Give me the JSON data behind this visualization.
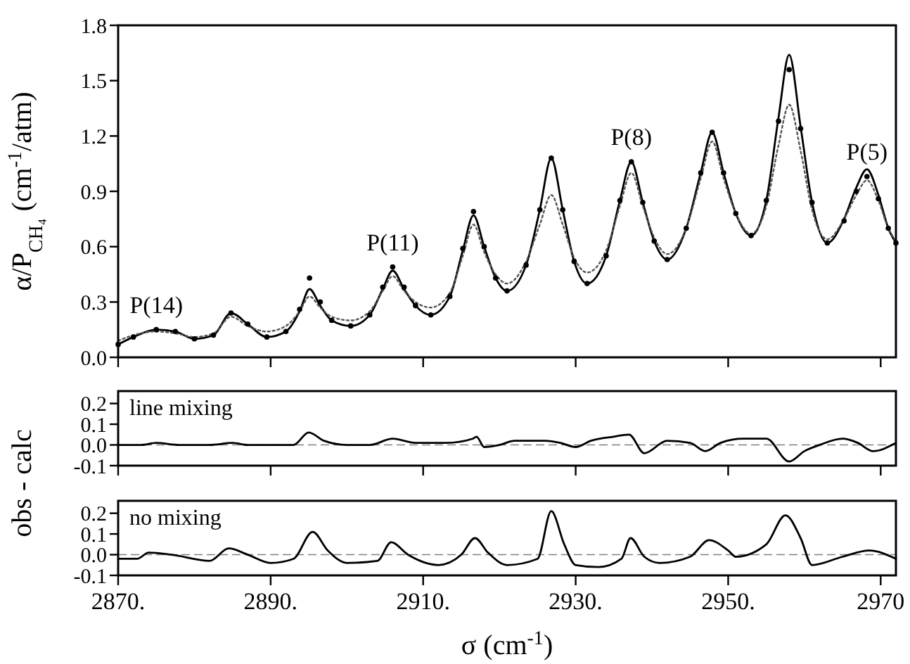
{
  "chart_data": [
    {
      "type": "line",
      "ylabel": "α/P$_{CH₄}$ (cm$^{-1}$/atm)",
      "xlim": [
        2870,
        2972
      ],
      "xticks": [
        2870,
        2890,
        2910,
        2930,
        2950,
        2970
      ],
      "ylim": [
        0,
        1.8
      ],
      "yticks": [
        {
          "value": 0,
          "label": "0.0"
        },
        {
          "value": 0.3,
          "label": "0.3"
        },
        {
          "value": 0.6,
          "label": "0.6"
        },
        {
          "value": 0.9,
          "label": "0.9"
        },
        {
          "value": 1.2,
          "label": "1.2"
        },
        {
          "value": 1.5,
          "label": "1.5"
        },
        {
          "value": 1.8,
          "label": "1.8"
        }
      ],
      "tick_labels": "y",
      "grid": false,
      "annotations": [
        {
          "text": "P(14)",
          "x": 2875,
          "y": 0.15
        },
        {
          "text": "P(11)",
          "x": 2906,
          "y": 0.49
        },
        {
          "text": "P(8)",
          "x": 2937.3,
          "y": 1.06
        },
        {
          "text": "P(5)",
          "x": 2968.2,
          "y": 0.98
        }
      ],
      "series": [
        {
          "type": "scatter",
          "marker": "circle",
          "color": "#000000",
          "x": [
            2870,
            2872,
            2875,
            2877.5,
            2880,
            2882.5,
            2884.8,
            2887,
            2889.5,
            2892,
            2893.8,
            2895.1,
            2896.5,
            2898,
            2900.5,
            2903,
            2904.7,
            2906,
            2907.5,
            2909,
            2911,
            2913.5,
            2915.2,
            2916.6,
            2918,
            2919.5,
            2921,
            2923.5,
            2925.3,
            2926.8,
            2928.3,
            2929.8,
            2931.5,
            2934,
            2935.8,
            2937.3,
            2938.8,
            2940.3,
            2942,
            2944.5,
            2946.4,
            2947.9,
            2949.4,
            2951,
            2953,
            2955,
            2956.6,
            2958,
            2959.5,
            2961,
            2963,
            2965.2,
            2966.8,
            2968.2,
            2969.7,
            2971,
            2972
          ],
          "values": [
            0.07,
            0.11,
            0.15,
            0.14,
            0.1,
            0.12,
            0.24,
            0.18,
            0.11,
            0.14,
            0.26,
            0.43,
            0.3,
            0.2,
            0.17,
            0.23,
            0.38,
            0.49,
            0.38,
            0.28,
            0.23,
            0.33,
            0.59,
            0.79,
            0.6,
            0.43,
            0.36,
            0.5,
            0.8,
            1.08,
            0.8,
            0.52,
            0.4,
            0.55,
            0.85,
            1.06,
            0.84,
            0.63,
            0.53,
            0.7,
            1.0,
            1.22,
            1.0,
            0.78,
            0.66,
            0.85,
            1.28,
            1.56,
            1.24,
            0.84,
            0.62,
            0.74,
            0.9,
            0.98,
            0.86,
            0.7,
            0.62
          ]
        },
        {
          "marker": "none",
          "line_style": "solid",
          "color": "#000000",
          "x": [
            2870,
            2872,
            2875,
            2877.5,
            2880,
            2882.5,
            2884.8,
            2887,
            2889.5,
            2892,
            2893.8,
            2895.1,
            2896.5,
            2898,
            2900.5,
            2903,
            2904.7,
            2906,
            2907.5,
            2909,
            2911,
            2913.5,
            2915.2,
            2916.6,
            2918,
            2919.5,
            2921,
            2923.5,
            2925.3,
            2926.8,
            2928.3,
            2929.8,
            2931.5,
            2934,
            2935.8,
            2937.3,
            2938.8,
            2940.3,
            2942,
            2944.5,
            2946.4,
            2947.9,
            2949.4,
            2951,
            2953,
            2955,
            2956.6,
            2958,
            2959.5,
            2961,
            2963,
            2965.2,
            2966.8,
            2968.2,
            2969.7,
            2971,
            2972
          ],
          "values": [
            0.07,
            0.11,
            0.15,
            0.14,
            0.1,
            0.12,
            0.24,
            0.18,
            0.11,
            0.14,
            0.25,
            0.37,
            0.28,
            0.2,
            0.17,
            0.23,
            0.37,
            0.47,
            0.37,
            0.28,
            0.23,
            0.33,
            0.58,
            0.77,
            0.6,
            0.43,
            0.36,
            0.5,
            0.8,
            1.08,
            0.8,
            0.52,
            0.4,
            0.55,
            0.85,
            1.06,
            0.84,
            0.63,
            0.53,
            0.7,
            1.0,
            1.22,
            1.0,
            0.78,
            0.66,
            0.85,
            1.3,
            1.64,
            1.25,
            0.84,
            0.62,
            0.75,
            0.92,
            1.02,
            0.88,
            0.7,
            0.62
          ]
        },
        {
          "marker": "none",
          "line_style": "dotted",
          "color": "#555555",
          "x": [
            2870,
            2872,
            2875,
            2877.5,
            2880,
            2882.5,
            2884.8,
            2887,
            2889.5,
            2892,
            2893.8,
            2895.1,
            2896.5,
            2898,
            2900.5,
            2903,
            2904.7,
            2906,
            2907.5,
            2909,
            2911,
            2913.5,
            2915.2,
            2916.6,
            2918,
            2919.5,
            2921,
            2923.5,
            2925.3,
            2926.8,
            2928.3,
            2929.8,
            2931.5,
            2934,
            2935.8,
            2937.3,
            2938.8,
            2940.3,
            2942,
            2944.5,
            2946.4,
            2947.9,
            2949.4,
            2951,
            2953,
            2955,
            2956.6,
            2958,
            2959.5,
            2961,
            2963,
            2965.2,
            2966.8,
            2968.2,
            2969.7,
            2971,
            2972
          ],
          "values": [
            0.09,
            0.12,
            0.14,
            0.13,
            0.11,
            0.13,
            0.22,
            0.17,
            0.14,
            0.17,
            0.25,
            0.33,
            0.27,
            0.22,
            0.2,
            0.25,
            0.36,
            0.44,
            0.36,
            0.3,
            0.27,
            0.35,
            0.55,
            0.72,
            0.57,
            0.45,
            0.4,
            0.52,
            0.72,
            0.88,
            0.72,
            0.54,
            0.46,
            0.58,
            0.82,
            1.0,
            0.82,
            0.65,
            0.56,
            0.7,
            0.97,
            1.17,
            0.97,
            0.78,
            0.67,
            0.82,
            1.15,
            1.37,
            1.12,
            0.8,
            0.64,
            0.75,
            0.88,
            0.96,
            0.85,
            0.7,
            0.63
          ]
        }
      ]
    },
    {
      "type": "line",
      "ylabel": "obs - calc",
      "xlim": [
        2870,
        2972
      ],
      "xticks": [
        2870,
        2890,
        2910,
        2930,
        2950,
        2970
      ],
      "ylim": [
        -0.1,
        0.26
      ],
      "yticks": [
        {
          "value": -0.1,
          "label": "-0.1"
        },
        {
          "value": 0,
          "label": "0.0"
        },
        {
          "value": 0.1,
          "label": "0.1"
        },
        {
          "value": 0.2,
          "label": "0.2"
        }
      ],
      "tick_labels": "y",
      "grid": false,
      "annotations": [
        "line mixing"
      ],
      "ref_lines": [
        {
          "axis": "y",
          "value": 0,
          "color": "#808080",
          "line_style": "dashed"
        }
      ],
      "series": [
        {
          "marker": "none",
          "line_style": "solid",
          "color": "#000000",
          "x": [
            2870,
            2873,
            2875,
            2878,
            2882,
            2885,
            2887,
            2893,
            2895,
            2897,
            2900,
            2903,
            2906,
            2909,
            2913,
            2916.5,
            2917,
            2918,
            2920,
            2922,
            2926,
            2928,
            2930,
            2932,
            2935,
            2937,
            2939,
            2942,
            2945,
            2947,
            2949,
            2952,
            2955,
            2958,
            2960,
            2962,
            2965,
            2967,
            2969,
            2972
          ],
          "values": [
            0.0,
            0.0,
            0.01,
            0.0,
            0.0,
            0.01,
            0.0,
            0.0,
            0.06,
            0.02,
            0.0,
            0.0,
            0.03,
            0.01,
            0.01,
            0.03,
            0.04,
            -0.01,
            0.0,
            0.02,
            0.02,
            0.01,
            -0.01,
            0.02,
            0.04,
            0.05,
            -0.04,
            0.02,
            0.01,
            -0.03,
            0.01,
            0.03,
            0.03,
            -0.08,
            -0.03,
            0.0,
            0.03,
            0.01,
            -0.03,
            0.01
          ]
        }
      ]
    },
    {
      "type": "line",
      "xlabel": "σ (cm$^{-1}$)",
      "xlim": [
        2870,
        2972
      ],
      "xticks": [
        {
          "value": 2870,
          "label": "2870."
        },
        {
          "value": 2890,
          "label": "2890."
        },
        {
          "value": 2910,
          "label": "2910."
        },
        {
          "value": 2930,
          "label": "2930."
        },
        {
          "value": 2950,
          "label": "2950."
        },
        {
          "value": 2970,
          "label": "2970"
        }
      ],
      "ylim": [
        -0.1,
        0.26
      ],
      "yticks": [
        {
          "value": -0.1,
          "label": "-0.1"
        },
        {
          "value": 0,
          "label": "0.0"
        },
        {
          "value": 0.1,
          "label": "0.1"
        },
        {
          "value": 0.2,
          "label": "0.2"
        }
      ],
      "grid": false,
      "annotations": [
        "no mixing"
      ],
      "ref_lines": [
        {
          "axis": "y",
          "value": 0,
          "color": "#808080",
          "line_style": "dashed"
        }
      ],
      "series": [
        {
          "marker": "none",
          "line_style": "solid",
          "color": "#000000",
          "x": [
            2870,
            2872.5,
            2874,
            2877,
            2882,
            2884.5,
            2887,
            2890,
            2893,
            2895.5,
            2897.5,
            2900,
            2904,
            2905.8,
            2908,
            2912,
            2915,
            2916.8,
            2918.5,
            2921,
            2925,
            2926.8,
            2928.5,
            2930,
            2933,
            2936,
            2937.2,
            2939,
            2941,
            2945,
            2947.5,
            2950,
            2951,
            2955,
            2957.5,
            2959.5,
            2961,
            2965,
            2968.5,
            2972
          ],
          "values": [
            -0.02,
            -0.02,
            0.01,
            0.0,
            -0.03,
            0.03,
            0.0,
            -0.04,
            -0.02,
            0.11,
            0.02,
            -0.04,
            -0.03,
            0.06,
            0.0,
            -0.05,
            0.0,
            0.08,
            0.01,
            -0.05,
            -0.02,
            0.21,
            0.05,
            -0.05,
            -0.06,
            -0.02,
            0.08,
            -0.01,
            -0.04,
            -0.01,
            0.07,
            0.02,
            -0.01,
            0.05,
            0.19,
            0.08,
            -0.05,
            -0.01,
            0.02,
            -0.02
          ]
        }
      ]
    }
  ]
}
